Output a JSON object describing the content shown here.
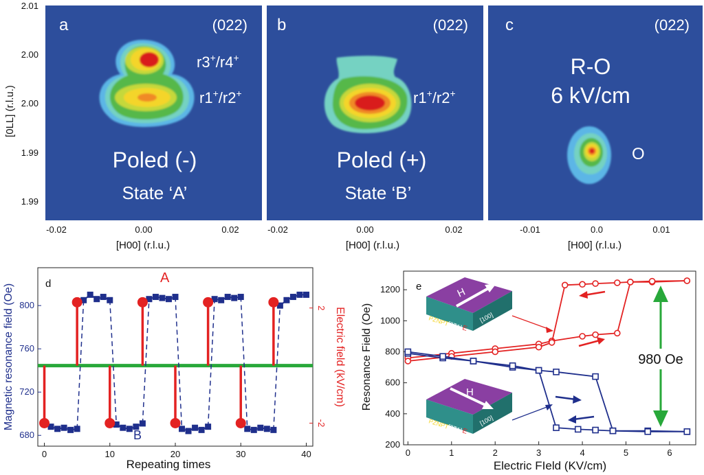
{
  "colors": {
    "map_bg": "#2d4e9c",
    "blue": "#1f2f8c",
    "red": "#e32222",
    "green": "#28a83a",
    "contour_levels": [
      "#5bb6e6",
      "#74d2c2",
      "#57b84a",
      "#c5d83a",
      "#f4d52c",
      "#f08a28",
      "#d91f1f"
    ]
  },
  "maps": {
    "ylabel": "[0LL] (r.l.u.)",
    "yticks": [
      "2.01",
      "2.00",
      "2.00",
      "1.99",
      "1.99"
    ],
    "panels": [
      {
        "letter": "a",
        "reflection": "(022)",
        "annotations": [
          {
            "base": "r3",
            "sup": "+",
            "sep": "/r4",
            "sup2": "+"
          },
          {
            "base": "r1",
            "sup": "+",
            "sep": "/r2",
            "sup2": "+"
          }
        ],
        "main": "Poled (-)",
        "sub": "State ‘A’",
        "xlabel": "[H00] (r.l.u.)",
        "xticks": [
          "-0.02",
          "0.00",
          "0.02"
        ]
      },
      {
        "letter": "b",
        "reflection": "(022)",
        "annotations": [
          {
            "base": "r1",
            "sup": "+",
            "sep": "/r2",
            "sup2": "+"
          }
        ],
        "main": "Poled (+)",
        "sub": "State ‘B’",
        "xlabel": "[H00] (r.l.u.)",
        "xticks": [
          "-0.02",
          "0.00",
          "0.02"
        ]
      },
      {
        "letter": "c",
        "reflection": "(022)",
        "big1": "R-O",
        "big2": "6 kV/cm",
        "point": "O",
        "xlabel": "[H00] (r.l.u.)",
        "xticks": [
          "-0.01",
          "0.0",
          "0.01"
        ]
      }
    ]
  },
  "chart_data": [
    {
      "type": "line",
      "panel": "d",
      "xlabel": "Repeating times",
      "ylabel": "Magnetic resonance field (Oe)",
      "y2label": "Electric field (kV/cm)",
      "xlim": [
        -1,
        41
      ],
      "ylim": [
        670,
        835
      ],
      "y2lim": [
        -2.8,
        3.4
      ],
      "xticks": [
        0,
        10,
        20,
        30,
        40
      ],
      "yticks": [
        680,
        720,
        760,
        800
      ],
      "y2ticks": [
        2,
        -2
      ],
      "series": [
        {
          "name": "",
          "axis": "left",
          "color": "#1f2f8c",
          "x": [
            1,
            2,
            3,
            4,
            5,
            6,
            7,
            8,
            9,
            10,
            11,
            12,
            13,
            14,
            15,
            16,
            17,
            18,
            19,
            20,
            21,
            22,
            23,
            24,
            25,
            26,
            27,
            28,
            29,
            30,
            31,
            32,
            33,
            34,
            35,
            36,
            37,
            38,
            39,
            40
          ],
          "y": [
            688,
            686,
            687,
            685,
            686,
            805,
            810,
            806,
            808,
            805,
            690,
            687,
            686,
            688,
            691,
            806,
            808,
            807,
            806,
            808,
            686,
            684,
            687,
            685,
            688,
            806,
            805,
            808,
            807,
            808,
            686,
            685,
            687,
            686,
            685,
            800,
            805,
            808,
            810,
            810
          ]
        },
        {
          "name": "",
          "axis": "right",
          "color": "#e32222",
          "x": [
            0,
            5,
            10,
            15,
            20,
            25,
            30,
            35
          ],
          "y": [
            -2,
            2.2,
            -2,
            2.2,
            -2,
            2.2,
            -2,
            2.2
          ]
        }
      ],
      "annotations": [
        "A",
        "B"
      ]
    },
    {
      "type": "line",
      "panel": "e",
      "xlabel": "Electric FIeld (KV/cm)",
      "ylabel": "Resonance Field (Oe)",
      "xlim": [
        -0.1,
        6.6
      ],
      "ylim": [
        200,
        1320
      ],
      "xticks": [
        0,
        1,
        2,
        3,
        4,
        5,
        6
      ],
      "yticks": [
        200,
        400,
        600,
        800,
        1000,
        1200
      ],
      "annotation": "980 Oe",
      "inset_text": {
        "material": "PZNPT",
        "dir1": "[0T1]",
        "field": "E",
        "dir2": "[100]",
        "h": "H"
      },
      "series": [
        {
          "name": "",
          "color": "#e32222",
          "marker": "circle",
          "part": "up",
          "x": [
            0,
            1,
            2,
            3,
            3.3,
            4,
            4.3,
            4.8,
            5.1,
            5.6,
            6.4
          ],
          "y": [
            760,
            790,
            820,
            850,
            870,
            900,
            910,
            920,
            1250,
            1250,
            1258
          ]
        },
        {
          "name": "",
          "color": "#e32222",
          "marker": "circle",
          "part": "down",
          "x": [
            6.4,
            5.6,
            5.1,
            4.8,
            4.3,
            4,
            3.6,
            3.3,
            3,
            2,
            1,
            0
          ],
          "y": [
            1258,
            1255,
            1250,
            1245,
            1240,
            1235,
            1230,
            860,
            830,
            800,
            770,
            740
          ]
        },
        {
          "name": "",
          "color": "#1f2f8c",
          "marker": "square",
          "part": "up",
          "x": [
            0,
            0.8,
            1.5,
            2.4,
            3,
            3.4,
            4.3,
            4.7,
            5.5,
            6.4
          ],
          "y": [
            790,
            760,
            740,
            700,
            680,
            670,
            640,
            290,
            290,
            285
          ]
        },
        {
          "name": "",
          "color": "#1f2f8c",
          "marker": "square",
          "part": "down",
          "x": [
            6.4,
            5.5,
            4.7,
            4.3,
            3.9,
            3.4,
            3,
            2.4,
            1.5,
            0.8,
            0
          ],
          "y": [
            285,
            285,
            290,
            295,
            300,
            310,
            680,
            710,
            740,
            770,
            800
          ]
        }
      ]
    }
  ]
}
